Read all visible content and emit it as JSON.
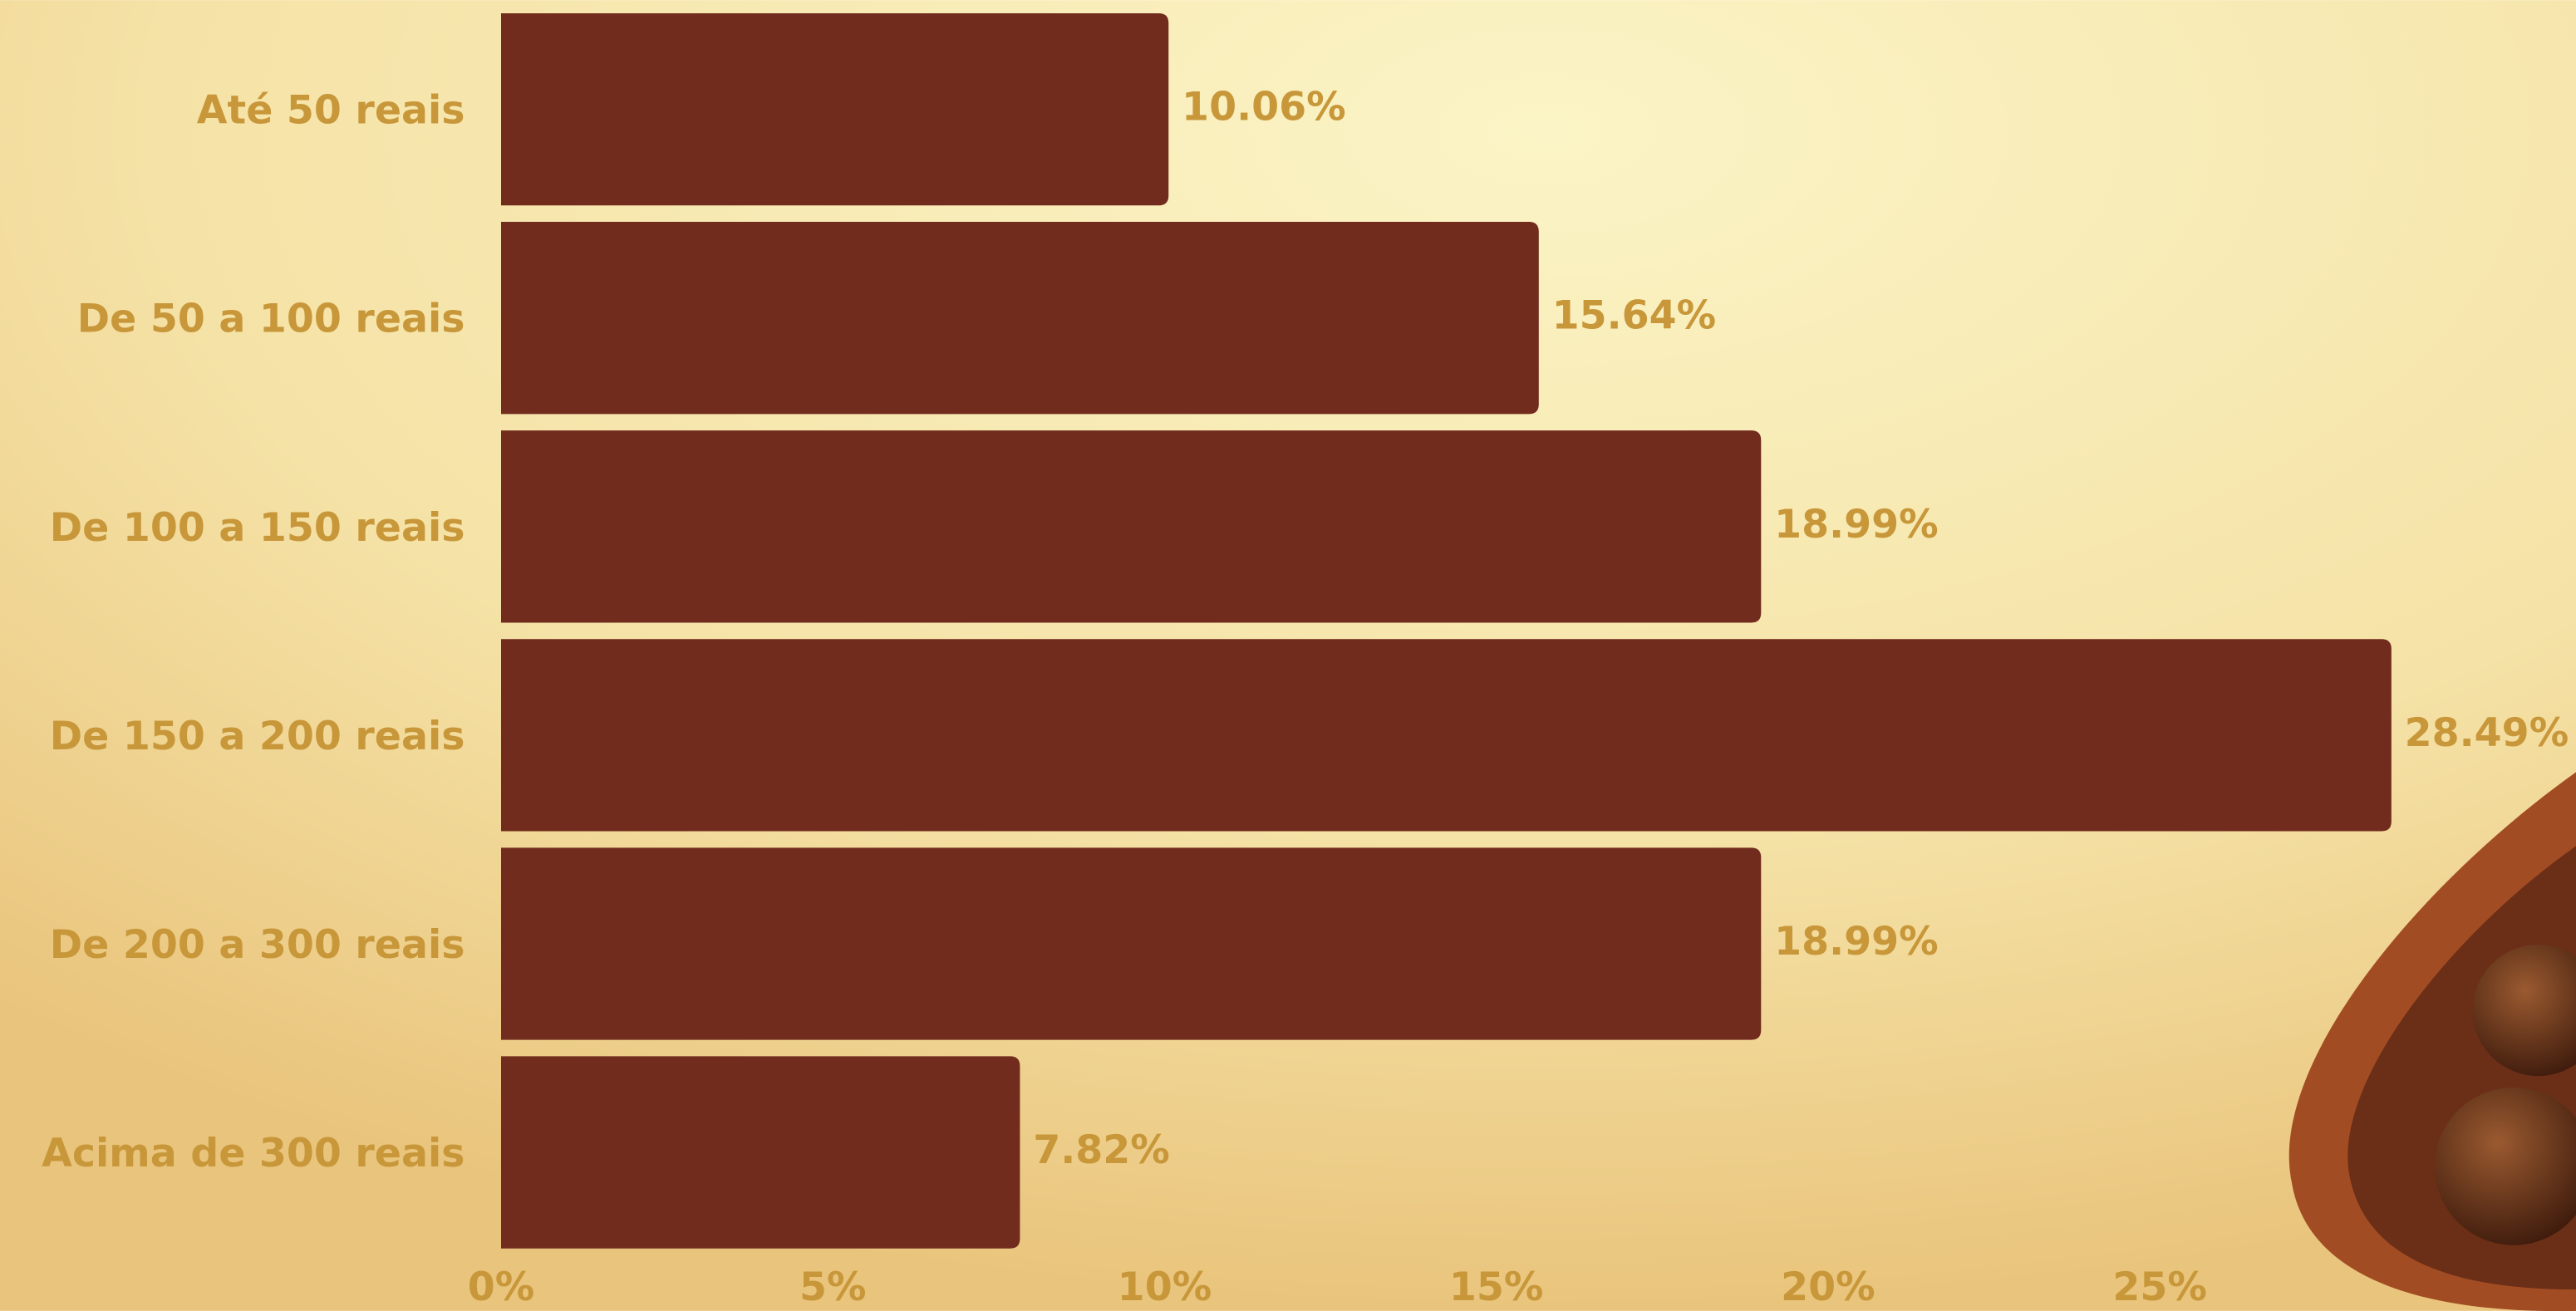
{
  "chart_data": {
    "type": "bar",
    "orientation": "horizontal",
    "categories": [
      "Até 50 reais",
      "De 50 a 100 reais",
      "De 100 a 150 reais",
      "De 150 a 200 reais",
      "De 200 a 300 reais",
      "Acima de 300 reais"
    ],
    "values": [
      10.06,
      15.64,
      18.99,
      28.49,
      18.99,
      7.82
    ],
    "value_labels": [
      "10.06%",
      "15.64%",
      "18.99%",
      "28.49%",
      "18.99%",
      "7.82%"
    ],
    "color": "#722c1e",
    "xlim": [
      0,
      31
    ],
    "xticks": [
      {
        "value": 0,
        "label": "0%"
      },
      {
        "value": 5,
        "label": "5%"
      },
      {
        "value": 10,
        "label": "10%"
      },
      {
        "value": 15,
        "label": "15%"
      },
      {
        "value": 20,
        "label": "20%"
      },
      {
        "value": 25,
        "label": "25%"
      }
    ],
    "grid": false
  }
}
